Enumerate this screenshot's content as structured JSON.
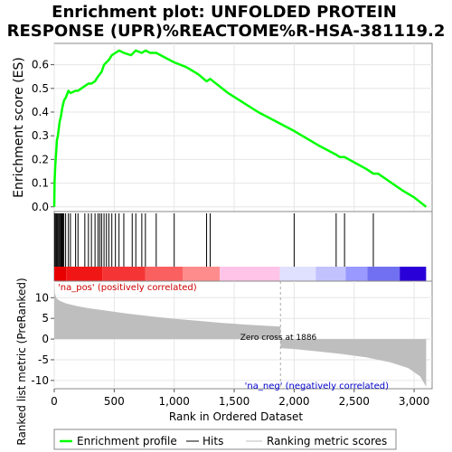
{
  "chart_data": {
    "type": "line",
    "title_lines": [
      "Enrichment plot: UNFOLDED PROTEIN",
      "RESPONSE (UPR)%REACTOME%R-HSA-381119.2"
    ],
    "es_panel": {
      "ylabel": "Enrichment score (ES)",
      "ylim": [
        -0.02,
        0.69
      ],
      "yticks": [
        0.0,
        0.1,
        0.2,
        0.3,
        0.4,
        0.5,
        0.6
      ],
      "ytick_labels": [
        "0.0",
        "0.1",
        "0.2",
        "0.3",
        "0.4",
        "0.5",
        "0.6"
      ],
      "series_name": "Enrichment profile",
      "color": "#00ff00",
      "points": [
        [
          0,
          0.0
        ],
        [
          3,
          0.11
        ],
        [
          8,
          0.17
        ],
        [
          12,
          0.2
        ],
        [
          17,
          0.24
        ],
        [
          22,
          0.28
        ],
        [
          30,
          0.3
        ],
        [
          38,
          0.33
        ],
        [
          45,
          0.36
        ],
        [
          55,
          0.38
        ],
        [
          68,
          0.42
        ],
        [
          82,
          0.45
        ],
        [
          95,
          0.46
        ],
        [
          118,
          0.49
        ],
        [
          135,
          0.48
        ],
        [
          178,
          0.49
        ],
        [
          198,
          0.49
        ],
        [
          255,
          0.51
        ],
        [
          285,
          0.52
        ],
        [
          310,
          0.52
        ],
        [
          340,
          0.53
        ],
        [
          365,
          0.55
        ],
        [
          380,
          0.56
        ],
        [
          395,
          0.57
        ],
        [
          415,
          0.6
        ],
        [
          435,
          0.61
        ],
        [
          455,
          0.62
        ],
        [
          480,
          0.64
        ],
        [
          510,
          0.65
        ],
        [
          540,
          0.66
        ],
        [
          580,
          0.65
        ],
        [
          640,
          0.64
        ],
        [
          680,
          0.66
        ],
        [
          730,
          0.65
        ],
        [
          760,
          0.66
        ],
        [
          800,
          0.65
        ],
        [
          850,
          0.65
        ],
        [
          1000,
          0.61
        ],
        [
          1100,
          0.59
        ],
        [
          1200,
          0.56
        ],
        [
          1270,
          0.53
        ],
        [
          1300,
          0.54
        ],
        [
          1450,
          0.48
        ],
        [
          1700,
          0.4
        ],
        [
          2000,
          0.32
        ],
        [
          2200,
          0.26
        ],
        [
          2350,
          0.22
        ],
        [
          2380,
          0.21
        ],
        [
          2420,
          0.21
        ],
        [
          2600,
          0.16
        ],
        [
          2660,
          0.14
        ],
        [
          2700,
          0.14
        ],
        [
          2900,
          0.07
        ],
        [
          3000,
          0.04
        ],
        [
          3100,
          0.0
        ]
      ]
    },
    "hits_panel": {
      "series_name": "Hits",
      "hit_positions": [
        3,
        10,
        18,
        25,
        32,
        40,
        48,
        56,
        64,
        72,
        80,
        95,
        118,
        135,
        178,
        198,
        255,
        285,
        310,
        340,
        365,
        380,
        395,
        415,
        435,
        455,
        480,
        510,
        540,
        580,
        650,
        680,
        730,
        760,
        850,
        1000,
        1270,
        1300,
        2000,
        2350,
        2420,
        2660
      ],
      "color_bar": [
        {
          "from": 0,
          "to": 100,
          "color": "#e60000"
        },
        {
          "from": 100,
          "to": 400,
          "color": "#f01616"
        },
        {
          "from": 400,
          "to": 760,
          "color": "#f53535"
        },
        {
          "from": 760,
          "to": 1070,
          "color": "#fa6060"
        },
        {
          "from": 1070,
          "to": 1380,
          "color": "#ff8c8c"
        },
        {
          "from": 1380,
          "to": 1880,
          "color": "#ffc4e8"
        },
        {
          "from": 1880,
          "to": 2180,
          "color": "#e0e0ff"
        },
        {
          "from": 2180,
          "to": 2430,
          "color": "#c2c2ff"
        },
        {
          "from": 2430,
          "to": 2610,
          "color": "#9999ff"
        },
        {
          "from": 2610,
          "to": 2880,
          "color": "#7070f0"
        },
        {
          "from": 2880,
          "to": 3100,
          "color": "#2a00d8"
        }
      ]
    },
    "rank_panel": {
      "ylabel": "Ranked list metric (PreRanked)",
      "ylim": [
        -12,
        14
      ],
      "yticks": [
        -10,
        -5,
        0,
        5,
        10
      ],
      "ytick_labels": [
        "-10",
        "-5",
        "0",
        "5",
        "10"
      ],
      "series_name": "Ranking metric scores",
      "color": "#bebebe",
      "points": [
        [
          0,
          14.0
        ],
        [
          5,
          11.0
        ],
        [
          20,
          9.8
        ],
        [
          50,
          9.2
        ],
        [
          100,
          8.6
        ],
        [
          200,
          7.9
        ],
        [
          300,
          7.4
        ],
        [
          400,
          7.0
        ],
        [
          500,
          6.6
        ],
        [
          600,
          6.2
        ],
        [
          800,
          5.5
        ],
        [
          1000,
          4.9
        ],
        [
          1200,
          4.4
        ],
        [
          1400,
          3.9
        ],
        [
          1600,
          3.5
        ],
        [
          1886,
          3.0
        ],
        [
          1886.01,
          -2.2
        ],
        [
          2000,
          -2.4
        ],
        [
          2200,
          -3.0
        ],
        [
          2400,
          -3.6
        ],
        [
          2600,
          -4.4
        ],
        [
          2800,
          -5.6
        ],
        [
          2950,
          -7.0
        ],
        [
          3050,
          -9.0
        ],
        [
          3080,
          -10.5
        ],
        [
          3100,
          -11.5
        ]
      ],
      "label_pos": "'na_pos' (positively correlated)",
      "label_neg": "'na_neg' (negatively correlated)",
      "zero_cross_label": "Zero cross at 1886",
      "zero_cross": 1886
    },
    "xlabel": "Rank in Ordered Dataset",
    "xlim": [
      0,
      3150
    ],
    "xticks": [
      0,
      500,
      1000,
      1500,
      2000,
      2500,
      3000
    ],
    "xtick_labels": [
      "0",
      "500",
      "1,000",
      "1,500",
      "2,000",
      "2,500",
      "3,000"
    ],
    "legend": {
      "placement": "bottom",
      "entries": [
        {
          "label": "Enrichment profile",
          "color": "#00ff00"
        },
        {
          "label": "Hits",
          "color": "#000000"
        },
        {
          "label": "Ranking metric scores",
          "color": "#bebebe"
        }
      ]
    }
  }
}
